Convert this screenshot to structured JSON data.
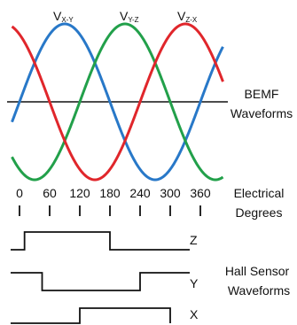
{
  "waveforms": [
    {
      "name": "V",
      "subscript": "X-Y",
      "color": "#2878c8",
      "phase_deg": 0
    },
    {
      "name": "V",
      "subscript": "Y-Z",
      "color": "#22a04a",
      "phase_deg": -120
    },
    {
      "name": "V",
      "subscript": "Z-X",
      "color": "#e0262b",
      "phase_deg": 120
    }
  ],
  "bemf_label_line1": "BEMF",
  "bemf_label_line2": "Waveforms",
  "degree_ticks": [
    "0",
    "60",
    "120",
    "180",
    "240",
    "300",
    "360"
  ],
  "degree_values": [
    0,
    60,
    120,
    180,
    240,
    300,
    360
  ],
  "electrical_label_line1": "Electrical",
  "electrical_label_line2": "Degrees",
  "hall_signals": [
    {
      "name": "Z",
      "high_from_deg": -30,
      "high_to_deg": 150
    },
    {
      "name": "Y",
      "high_from_deg": 270,
      "high_to_deg": 390
    },
    {
      "name": "X",
      "high_from_deg": 90,
      "high_to_deg": 270
    }
  ],
  "hall_label_line1": "Hall Sensor",
  "hall_label_line2": "Waveforms",
  "colors": {
    "line": "#111111",
    "background": "#ffffff"
  }
}
